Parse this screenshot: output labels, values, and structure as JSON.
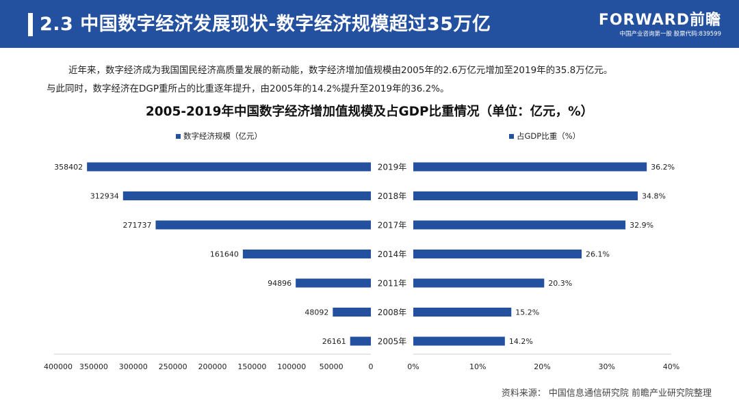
{
  "header": {
    "title": "2.3 中国数字经济发展现状-数字经济规模超过35万亿",
    "logo": "FORWARD前瞻",
    "tagline": "中国产业咨询第一股 股票代码:839599"
  },
  "intro": {
    "line1": "近年来，数字经济成为我国国民经济高质量发展的新动能，数字经济增加值规模由2005年的2.6万亿元增加至2019年的35.8万亿元。",
    "line2": "与此同时，数字经济在DGP重所占的比重逐年提升，由2005年的14.2%提升至2019年的36.2%。"
  },
  "source": {
    "prefix": "资料来源：",
    "text": "中国信息通信研究院 前瞻产业研究院整理"
  },
  "chart_data": {
    "type": "bar",
    "orientation": "horizontal-butterfly",
    "title": "2005-2019年中国数字经济增加值规模及占GDP比重情况（单位：亿元，%）",
    "categories": [
      "2019年",
      "2018年",
      "2017年",
      "2014年",
      "2011年",
      "2008年",
      "2005年"
    ],
    "color": "#2450a0",
    "left": {
      "legend": "数字经济规模（亿元）",
      "values": [
        358402,
        312934,
        271737,
        161640,
        94896,
        48092,
        26161
      ],
      "labels": [
        "358402",
        "312934",
        "271737",
        "161640",
        "94896",
        "48092",
        "26161"
      ],
      "xlim": [
        0,
        400000
      ],
      "ticks": [
        "400000",
        "350000",
        "300000",
        "250000",
        "200000",
        "150000",
        "100000",
        "50000",
        "0"
      ],
      "reversed": true
    },
    "right": {
      "legend": "占GDP比重（%）",
      "values": [
        36.2,
        34.8,
        32.9,
        26.1,
        20.3,
        15.2,
        14.2
      ],
      "labels": [
        "36.2%",
        "34.8%",
        "32.9%",
        "26.1%",
        "20.3%",
        "15.2%",
        "14.2%"
      ],
      "xlim": [
        0,
        40
      ],
      "ticks": [
        "0%",
        "10%",
        "20%",
        "30%",
        "40%"
      ]
    },
    "legend_position": "top",
    "grid": false
  }
}
